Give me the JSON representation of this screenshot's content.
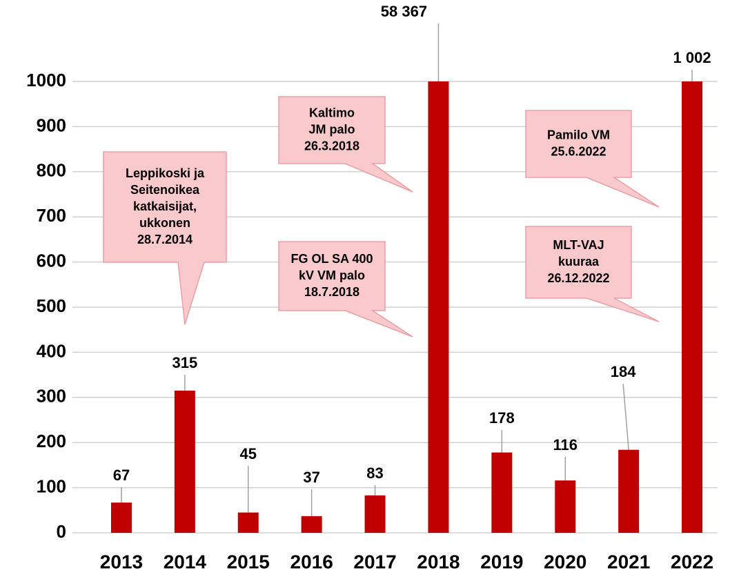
{
  "chart_data": {
    "type": "bar",
    "categories": [
      "2013",
      "2014",
      "2015",
      "2016",
      "2017",
      "2018",
      "2019",
      "2020",
      "2021",
      "2022"
    ],
    "values": [
      67,
      315,
      45,
      37,
      83,
      58367,
      178,
      116,
      184,
      1002
    ],
    "value_labels": [
      "67",
      "315",
      "45",
      "37",
      "83",
      "58 367",
      "178",
      "116",
      "184",
      "1 002"
    ],
    "color": "#c00000",
    "ylim": [
      0,
      1000
    ],
    "yticks": [
      0,
      100,
      200,
      300,
      400,
      500,
      600,
      700,
      800,
      900,
      1000
    ],
    "grid": true,
    "annotations": [
      {
        "lines": [
          "Leppikoski ja",
          "Seitenoikea",
          "katkaisijat,",
          "ukkonen",
          "28.7.2014"
        ]
      },
      {
        "lines": [
          "Kaltimo",
          "JM palo",
          "26.3.2018"
        ]
      },
      {
        "lines": [
          "FG OL SA 400",
          "kV VM palo",
          "18.7.2018"
        ]
      },
      {
        "lines": [
          "Pamilo VM",
          "25.6.2022"
        ]
      },
      {
        "lines": [
          "MLT-VAJ",
          "kuuraa",
          "26.12.2022"
        ]
      }
    ]
  }
}
